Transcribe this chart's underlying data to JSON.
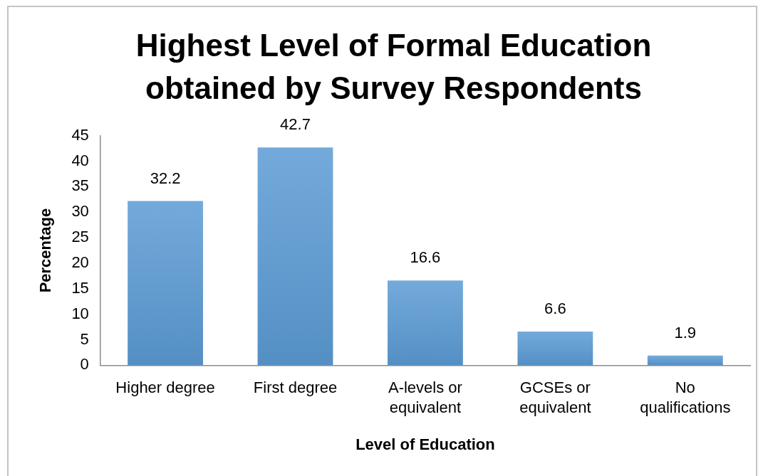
{
  "chart_data": {
    "type": "bar",
    "title": "Highest Level of Formal Education obtained by Survey Respondents",
    "xlabel": "Level of Education",
    "ylabel": "Percentage",
    "categories": [
      "Higher degree",
      "First degree",
      "A-levels or equivalent",
      "GCSEs or equivalent",
      "No qualifications"
    ],
    "values": [
      32.2,
      42.7,
      16.6,
      6.6,
      1.9
    ],
    "color": "#5b9bd5",
    "ylim": [
      0,
      45
    ],
    "yticks": [
      0,
      5,
      10,
      15,
      20,
      25,
      30,
      35,
      40,
      45
    ],
    "grid": false,
    "legend": false,
    "data_labels": true
  }
}
